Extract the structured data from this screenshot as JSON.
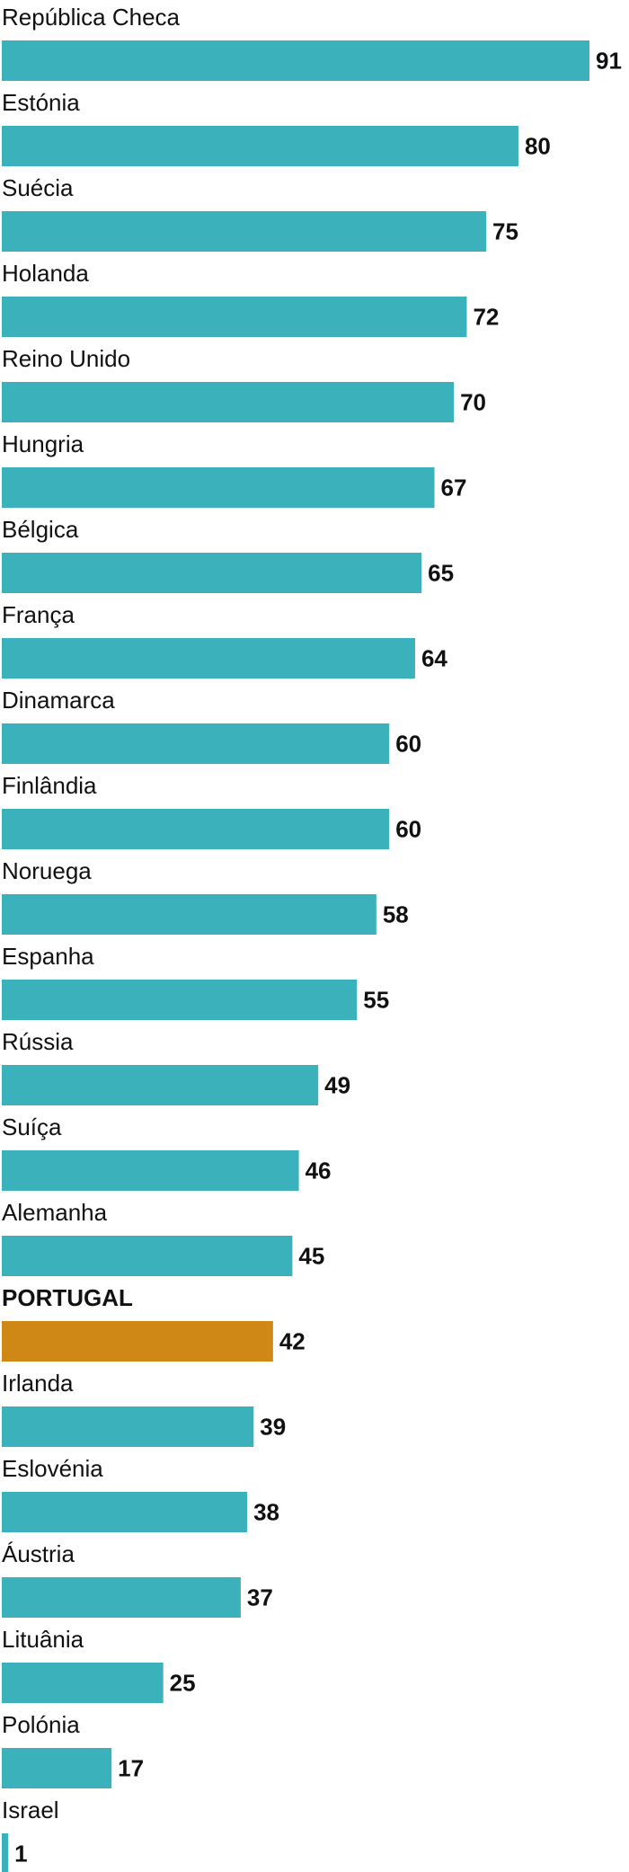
{
  "chart_data": {
    "type": "bar",
    "orientation": "horizontal",
    "categories": [
      "República Checa",
      "Estónia",
      "Suécia",
      "Holanda",
      "Reino Unido",
      "Hungria",
      "Bélgica",
      "França",
      "Dinamarca",
      "Finlândia",
      "Noruega",
      "Espanha",
      "Rússia",
      "Suíça",
      "Alemanha",
      "PORTUGAL",
      "Irlanda",
      "Eslovénia",
      "Áustria",
      "Lituânia",
      "Polónia",
      "Israel"
    ],
    "values": [
      91,
      80,
      75,
      72,
      70,
      67,
      65,
      64,
      60,
      60,
      58,
      55,
      49,
      46,
      45,
      42,
      39,
      38,
      37,
      25,
      17,
      1
    ],
    "value_labels": [
      "91",
      "80",
      "75",
      "72",
      "70",
      "67",
      "65",
      "64",
      "60",
      "60",
      "58",
      "55",
      "49",
      "46",
      "45",
      "42",
      "39",
      "38",
      "37",
      "25",
      "17",
      "1"
    ],
    "highlight": "PORTUGAL",
    "xlim": [
      0,
      91
    ],
    "grid": false,
    "legend": "none",
    "colors": {
      "bar": "#3bb1bc",
      "highlight_bar": "#cf8715",
      "text": "#111111"
    }
  }
}
